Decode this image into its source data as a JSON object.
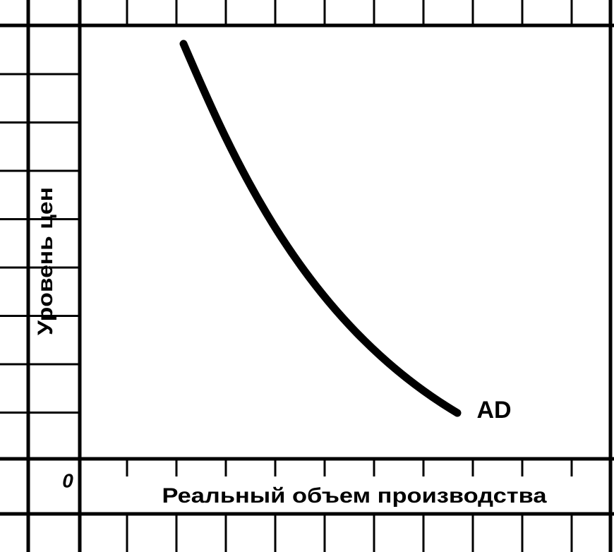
{
  "y_axis_label": "Уровень цен",
  "x_axis_label": "Реальный объем производства",
  "origin_label": "0",
  "curve_label": "AD"
}
